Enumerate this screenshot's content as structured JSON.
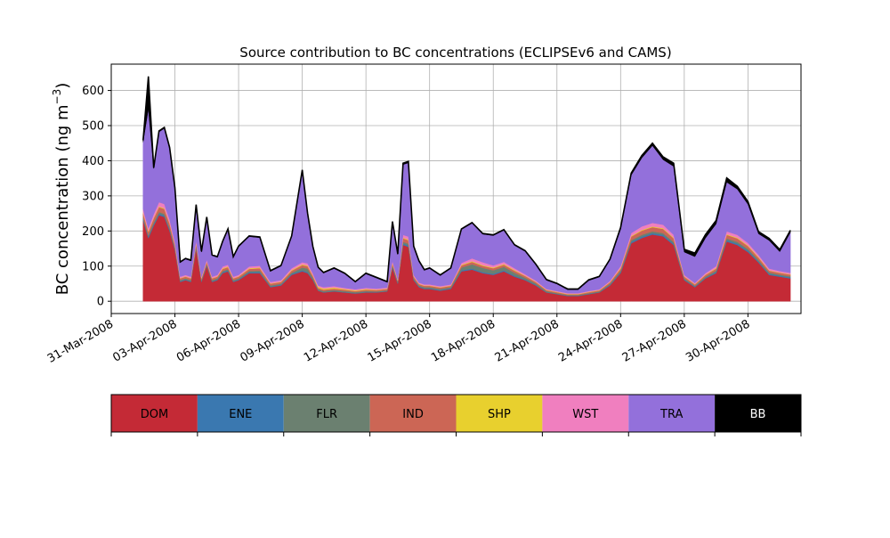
{
  "chart_data": {
    "type": "area",
    "stacked": true,
    "title": "Source contribution to BC concentrations (ECLIPSEv6 and CAMS)",
    "xlabel": "",
    "ylabel": "BC concentration (ng m",
    "ylabel_sup": "−3",
    "ylabel_close": ")",
    "ylim": [
      -35,
      675
    ],
    "xlim": [
      "2008-03-31T00:00",
      "2008-05-02T12:00"
    ],
    "yticks": [
      0,
      100,
      200,
      300,
      400,
      500,
      600
    ],
    "xticks": [
      "2008-03-31",
      "2008-04-03",
      "2008-04-06",
      "2008-04-09",
      "2008-04-12",
      "2008-04-15",
      "2008-04-18",
      "2008-04-21",
      "2008-04-24",
      "2008-04-27",
      "2008-04-30"
    ],
    "xtick_labels": [
      "31-Mar-2008",
      "03-Apr-2008",
      "06-Apr-2008",
      "09-Apr-2008",
      "12-Apr-2008",
      "15-Apr-2008",
      "18-Apr-2008",
      "21-Apr-2008",
      "24-Apr-2008",
      "27-Apr-2008",
      "30-Apr-2008"
    ],
    "grid": true,
    "legend_position": "below",
    "series_order": [
      "DOM",
      "ENE",
      "FLR",
      "IND",
      "SHP",
      "WST",
      "TRA",
      "BB"
    ],
    "colors": {
      "DOM": "#c42a36",
      "ENE": "#3a78b0",
      "FLR": "#6b8070",
      "IND": "#cc6655",
      "SHP": "#e8d02e",
      "WST": "#f07fbf",
      "TRA": "#9370db",
      "BB": "#000000"
    },
    "x": [
      "2008-04-01T12:00",
      "2008-04-01T18:00",
      "2008-04-02T00:00",
      "2008-04-02T06:00",
      "2008-04-02T12:00",
      "2008-04-02T18:00",
      "2008-04-03T00:00",
      "2008-04-03T06:00",
      "2008-04-03T12:00",
      "2008-04-03T18:00",
      "2008-04-04T00:00",
      "2008-04-04T06:00",
      "2008-04-04T12:00",
      "2008-04-04T18:00",
      "2008-04-05T00:00",
      "2008-04-05T06:00",
      "2008-04-05T12:00",
      "2008-04-05T18:00",
      "2008-04-06T00:00",
      "2008-04-06T12:00",
      "2008-04-07T00:00",
      "2008-04-07T12:00",
      "2008-04-08T00:00",
      "2008-04-08T12:00",
      "2008-04-09T00:00",
      "2008-04-09T06:00",
      "2008-04-09T12:00",
      "2008-04-09T18:00",
      "2008-04-10T00:00",
      "2008-04-10T12:00",
      "2008-04-11T00:00",
      "2008-04-11T12:00",
      "2008-04-12T00:00",
      "2008-04-12T12:00",
      "2008-04-13T00:00",
      "2008-04-13T06:00",
      "2008-04-13T12:00",
      "2008-04-13T18:00",
      "2008-04-14T00:00",
      "2008-04-14T06:00",
      "2008-04-14T12:00",
      "2008-04-14T18:00",
      "2008-04-15T00:00",
      "2008-04-15T12:00",
      "2008-04-16T00:00",
      "2008-04-16T12:00",
      "2008-04-17T00:00",
      "2008-04-17T12:00",
      "2008-04-18T00:00",
      "2008-04-18T12:00",
      "2008-04-19T00:00",
      "2008-04-19T12:00",
      "2008-04-20T00:00",
      "2008-04-20T12:00",
      "2008-04-21T00:00",
      "2008-04-21T12:00",
      "2008-04-22T00:00",
      "2008-04-22T12:00",
      "2008-04-23T00:00",
      "2008-04-23T12:00",
      "2008-04-24T00:00",
      "2008-04-24T12:00",
      "2008-04-25T00:00",
      "2008-04-25T12:00",
      "2008-04-26T00:00",
      "2008-04-26T12:00",
      "2008-04-27T00:00",
      "2008-04-27T12:00",
      "2008-04-28T00:00",
      "2008-04-28T12:00",
      "2008-04-29T00:00",
      "2008-04-29T12:00",
      "2008-04-30T00:00",
      "2008-04-30T12:00",
      "2008-05-01T00:00",
      "2008-05-01T12:00",
      "2008-05-02T00:00"
    ],
    "series": [
      {
        "name": "DOM",
        "values": [
          230,
          180,
          215,
          245,
          240,
          200,
          145,
          55,
          60,
          55,
          150,
          55,
          100,
          55,
          60,
          80,
          85,
          55,
          60,
          80,
          80,
          40,
          45,
          75,
          85,
          80,
          60,
          30,
          25,
          28,
          25,
          22,
          25,
          25,
          28,
          95,
          50,
          160,
          155,
          60,
          40,
          35,
          35,
          30,
          35,
          85,
          90,
          80,
          75,
          85,
          70,
          60,
          45,
          25,
          20,
          15,
          15,
          20,
          25,
          45,
          80,
          165,
          180,
          190,
          185,
          160,
          60,
          40,
          65,
          80,
          170,
          160,
          140,
          110,
          75,
          70,
          65
        ]
      },
      {
        "name": "ENE",
        "values": [
          4,
          4,
          4,
          4,
          4,
          4,
          3,
          2,
          2,
          2,
          3,
          2,
          3,
          2,
          2,
          3,
          3,
          2,
          2,
          3,
          3,
          2,
          2,
          3,
          3,
          3,
          2,
          1,
          1,
          1,
          1,
          1,
          1,
          1,
          1,
          3,
          2,
          4,
          4,
          2,
          2,
          2,
          2,
          2,
          2,
          3,
          3,
          3,
          3,
          3,
          3,
          2,
          2,
          1,
          1,
          1,
          1,
          1,
          1,
          2,
          3,
          4,
          4,
          4,
          4,
          4,
          2,
          2,
          2,
          3,
          4,
          4,
          4,
          3,
          3,
          3,
          3
        ]
      },
      {
        "name": "FLR",
        "values": [
          5,
          4,
          5,
          5,
          5,
          5,
          4,
          3,
          3,
          3,
          4,
          3,
          3,
          3,
          3,
          3,
          3,
          3,
          3,
          3,
          4,
          3,
          3,
          3,
          8,
          10,
          5,
          3,
          3,
          3,
          3,
          3,
          3,
          2,
          2,
          4,
          3,
          5,
          5,
          3,
          3,
          3,
          3,
          3,
          3,
          8,
          12,
          12,
          10,
          10,
          8,
          5,
          4,
          3,
          2,
          2,
          2,
          2,
          2,
          3,
          4,
          5,
          5,
          5,
          5,
          5,
          3,
          2,
          3,
          4,
          5,
          5,
          5,
          4,
          4,
          3,
          3
        ]
      },
      {
        "name": "IND",
        "values": [
          12,
          10,
          12,
          14,
          14,
          12,
          8,
          5,
          5,
          5,
          8,
          5,
          6,
          5,
          5,
          6,
          6,
          5,
          5,
          6,
          7,
          5,
          5,
          6,
          7,
          7,
          5,
          4,
          4,
          4,
          4,
          3,
          4,
          4,
          4,
          6,
          4,
          10,
          10,
          5,
          4,
          4,
          4,
          4,
          4,
          6,
          7,
          6,
          6,
          6,
          6,
          5,
          4,
          3,
          3,
          2,
          2,
          3,
          3,
          4,
          6,
          10,
          12,
          12,
          12,
          10,
          5,
          4,
          5,
          6,
          10,
          10,
          8,
          7,
          5,
          5,
          5
        ]
      },
      {
        "name": "SHP",
        "values": [
          2,
          2,
          2,
          2,
          2,
          2,
          2,
          1,
          1,
          1,
          2,
          1,
          1,
          1,
          1,
          2,
          2,
          1,
          1,
          2,
          2,
          1,
          1,
          2,
          2,
          2,
          2,
          3,
          3,
          3,
          2,
          2,
          2,
          1,
          1,
          2,
          1,
          2,
          2,
          1,
          1,
          1,
          1,
          1,
          1,
          2,
          2,
          2,
          2,
          2,
          2,
          1,
          1,
          1,
          1,
          1,
          1,
          1,
          1,
          1,
          2,
          2,
          2,
          2,
          2,
          2,
          1,
          1,
          1,
          2,
          2,
          2,
          2,
          2,
          1,
          1,
          1
        ]
      },
      {
        "name": "WST",
        "values": [
          10,
          8,
          10,
          12,
          12,
          10,
          6,
          4,
          4,
          4,
          6,
          4,
          5,
          4,
          4,
          5,
          5,
          4,
          4,
          5,
          5,
          4,
          4,
          5,
          6,
          6,
          5,
          4,
          4,
          4,
          3,
          3,
          3,
          3,
          3,
          5,
          3,
          8,
          8,
          4,
          3,
          3,
          3,
          3,
          3,
          5,
          8,
          8,
          6,
          6,
          5,
          4,
          3,
          2,
          2,
          2,
          2,
          2,
          2,
          3,
          5,
          8,
          10,
          10,
          10,
          8,
          4,
          3,
          4,
          5,
          8,
          8,
          7,
          6,
          5,
          4,
          4
        ]
      },
      {
        "name": "TRA",
        "values": [
          190,
          340,
          130,
          200,
          215,
          200,
          150,
          40,
          45,
          45,
          100,
          70,
          120,
          60,
          50,
          70,
          100,
          55,
          80,
          85,
          80,
          30,
          40,
          90,
          260,
          140,
          75,
          50,
          40,
          50,
          40,
          20,
          40,
          30,
          15,
          110,
          70,
          200,
          210,
          80,
          60,
          40,
          45,
          30,
          45,
          95,
          100,
          80,
          85,
          90,
          65,
          65,
          45,
          25,
          20,
          10,
          10,
          30,
          35,
          60,
          105,
          165,
          195,
          220,
          185,
          195,
          65,
          75,
          100,
          120,
          140,
          130,
          110,
          60,
          80,
          55,
          115
        ]
      },
      {
        "name": "BB",
        "values": [
          5,
          92,
          2,
          3,
          3,
          5,
          5,
          2,
          2,
          2,
          2,
          2,
          2,
          2,
          2,
          2,
          2,
          2,
          2,
          2,
          2,
          2,
          2,
          2,
          3,
          3,
          2,
          2,
          2,
          2,
          2,
          2,
          2,
          2,
          2,
          2,
          2,
          4,
          4,
          2,
          2,
          2,
          2,
          2,
          2,
          2,
          2,
          2,
          2,
          2,
          2,
          2,
          2,
          2,
          2,
          2,
          2,
          2,
          2,
          2,
          5,
          6,
          7,
          7,
          8,
          9,
          8,
          10,
          10,
          10,
          12,
          8,
          8,
          6,
          6,
          6,
          6
        ]
      }
    ]
  }
}
